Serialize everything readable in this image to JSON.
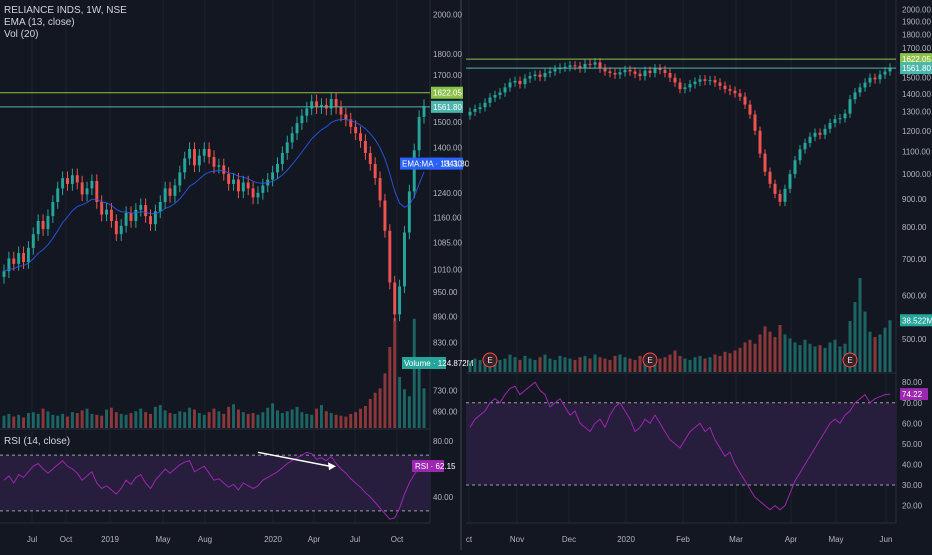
{
  "header": {
    "symbol_line": "RELIANCE INDS, 1W, NSE",
    "ema_label": "EMA (13, close)",
    "vol_label": "Vol (20)",
    "rsi_label": "RSI (14, close)"
  },
  "colors": {
    "background": "#131722",
    "bull": "#26a69a",
    "bear": "#ef5350",
    "ema": "#2962ff",
    "rsi": "#9c27b0",
    "rsi_band": "#2a1e3f",
    "level_upper": "#8bc34a",
    "level_lower": "#4db6ac",
    "axis_text": "#b2b5be",
    "grid": "#1e222d"
  },
  "chart_data": [
    {
      "type": "candlestick",
      "title": "RELIANCE INDS, 1W, NSE",
      "scale": "log",
      "ylim": [
        660,
        2080
      ],
      "price_ticks": [
        "2000.00",
        "1800.00",
        "1700.00",
        "1622.05",
        "1561.80",
        "1500.00",
        "1400.00",
        "1341.30",
        "1240.00",
        "1160.00",
        "1085.00",
        "1010.00",
        "950.00",
        "890.00",
        "830.00",
        "730.00",
        "690.00"
      ],
      "x_tick_labels": [
        "Jul",
        "Oct",
        "2019",
        "May",
        "Aug",
        "2020",
        "Apr",
        "Jul",
        "Oct"
      ],
      "horizontal_levels": [
        1622.05,
        1561.8
      ],
      "ema_label_text": "EMA:MA",
      "ema_value": 1341.3,
      "volume_label_text": "Volume",
      "volume_value": "124.872M",
      "volume_max_millions": 124.9,
      "close_series": [
        1005,
        1040,
        1025,
        1055,
        1030,
        1070,
        1110,
        1150,
        1125,
        1165,
        1210,
        1255,
        1290,
        1270,
        1300,
        1275,
        1235,
        1255,
        1280,
        1210,
        1170,
        1185,
        1150,
        1110,
        1135,
        1175,
        1150,
        1185,
        1200,
        1165,
        1140,
        1180,
        1210,
        1255,
        1230,
        1265,
        1310,
        1360,
        1395,
        1335,
        1370,
        1395,
        1365,
        1330,
        1335,
        1305,
        1270,
        1285,
        1245,
        1275,
        1255,
        1225,
        1240,
        1265,
        1285,
        1310,
        1340,
        1380,
        1420,
        1455,
        1495,
        1525,
        1555,
        1585,
        1560,
        1570,
        1555,
        1595,
        1560,
        1530,
        1510,
        1480,
        1455,
        1425,
        1380,
        1340,
        1290,
        1215,
        1120,
        975,
        895,
        965,
        1115,
        1245,
        1390,
        1520,
        1565
      ],
      "volume_series_millions": [
        14,
        16,
        13,
        15,
        12,
        17,
        18,
        16,
        22,
        19,
        15,
        14,
        16,
        13,
        18,
        17,
        20,
        22,
        16,
        15,
        14,
        21,
        23,
        18,
        16,
        15,
        17,
        19,
        22,
        18,
        16,
        24,
        26,
        20,
        17,
        16,
        19,
        18,
        23,
        21,
        17,
        15,
        18,
        22,
        19,
        16,
        24,
        27,
        21,
        18,
        16,
        17,
        15,
        18,
        23,
        28,
        20,
        17,
        19,
        21,
        24,
        18,
        16,
        15,
        22,
        26,
        19,
        17,
        15,
        14,
        13,
        16,
        18,
        22,
        25,
        33,
        40,
        45,
        62,
        92,
        124.9,
        58,
        44,
        36,
        124,
        70,
        45
      ]
    },
    {
      "type": "candlestick",
      "scale": "log",
      "ylim": [
        435,
        2080
      ],
      "price_ticks": [
        "2000.00",
        "1900.00",
        "1800.00",
        "1700.00",
        "1622.05",
        "1561.80",
        "1500.00",
        "1400.00",
        "1300.00",
        "1200.00",
        "1100.00",
        "1000.00",
        "900.00",
        "800.00",
        "700.00",
        "38.522M",
        "600.00",
        "500.00"
      ],
      "x_tick_labels": [
        "ct",
        "Nov",
        "Dec",
        "2020",
        "Feb",
        "Mar",
        "Apr",
        "May",
        "Jun"
      ],
      "horizontal_levels": [
        1622.05,
        1561.8
      ],
      "volume_value": "38.522M",
      "earnings_marker": "E",
      "close_series": [
        1300,
        1315,
        1325,
        1350,
        1380,
        1395,
        1410,
        1440,
        1470,
        1480,
        1460,
        1495,
        1510,
        1520,
        1505,
        1530,
        1540,
        1555,
        1565,
        1570,
        1580,
        1575,
        1560,
        1590,
        1585,
        1600,
        1560,
        1540,
        1530,
        1520,
        1535,
        1550,
        1540,
        1525,
        1510,
        1545,
        1530,
        1560,
        1550,
        1530,
        1500,
        1470,
        1430,
        1440,
        1460,
        1475,
        1490,
        1480,
        1485,
        1470,
        1450,
        1430,
        1420,
        1405,
        1385,
        1340,
        1285,
        1200,
        1090,
        1010,
        960,
        920,
        890,
        940,
        1000,
        1060,
        1110,
        1140,
        1170,
        1190,
        1180,
        1210,
        1240,
        1260,
        1265,
        1290,
        1370,
        1410,
        1440,
        1470,
        1500,
        1490,
        1520,
        1540,
        1565
      ],
      "volume_series_millions": [
        8,
        10,
        9,
        8,
        11,
        12,
        9,
        10,
        13,
        11,
        9,
        12,
        10,
        9,
        11,
        13,
        10,
        9,
        12,
        11,
        10,
        9,
        11,
        12,
        10,
        13,
        11,
        10,
        9,
        12,
        13,
        11,
        10,
        9,
        12,
        11,
        14,
        12,
        10,
        11,
        13,
        16,
        12,
        10,
        9,
        11,
        12,
        10,
        11,
        13,
        12,
        15,
        14,
        16,
        18,
        22,
        24,
        21,
        28,
        34,
        30,
        26,
        35,
        28,
        25,
        22,
        20,
        24,
        21,
        19,
        20,
        18,
        22,
        24,
        19,
        21,
        38,
        52,
        70,
        45,
        30,
        26,
        28,
        33,
        38.5
      ],
      "earnings_markers_at_index": [
        4,
        36,
        76
      ]
    }
  ],
  "rsi_data": [
    {
      "type": "line",
      "title": "RSI (14, close)",
      "ylim": [
        22,
        88
      ],
      "ticks": [
        "80.00",
        "40.00"
      ],
      "upper": 70,
      "lower": 30,
      "value_label": "RSI",
      "value": 62.15,
      "series": [
        52,
        55,
        50,
        56,
        54,
        58,
        62,
        64,
        60,
        57,
        60,
        63,
        66,
        62,
        60,
        57,
        52,
        55,
        58,
        50,
        46,
        48,
        45,
        42,
        46,
        52,
        49,
        54,
        56,
        50,
        46,
        52,
        56,
        60,
        57,
        60,
        63,
        65,
        66,
        58,
        60,
        62,
        57,
        52,
        53,
        50,
        47,
        49,
        45,
        50,
        48,
        46,
        48,
        52,
        54,
        56,
        58,
        61,
        64,
        66,
        68,
        70,
        72,
        71,
        67,
        68,
        66,
        69,
        64,
        60,
        57,
        53,
        50,
        47,
        43,
        40,
        36,
        32,
        28,
        24,
        25,
        32,
        42,
        50,
        56,
        61,
        62.15
      ]
    },
    {
      "type": "line",
      "ylim": [
        12,
        84
      ],
      "ticks": [
        "80.00",
        "74.22",
        "70.00",
        "60.00",
        "50.00",
        "40.00",
        "30.00",
        "20.00"
      ],
      "upper": 70,
      "lower": 30,
      "value": 74.22,
      "series": [
        58,
        62,
        64,
        66,
        70,
        72,
        70,
        74,
        77,
        78,
        74,
        76,
        78,
        80,
        76,
        74,
        68,
        70,
        72,
        68,
        64,
        66,
        60,
        58,
        56,
        60,
        62,
        58,
        64,
        68,
        70,
        66,
        62,
        56,
        58,
        62,
        60,
        64,
        60,
        56,
        52,
        50,
        48,
        52,
        56,
        58,
        60,
        56,
        58,
        52,
        48,
        44,
        46,
        40,
        36,
        32,
        28,
        24,
        22,
        20,
        18,
        20,
        18,
        20,
        26,
        32,
        36,
        40,
        44,
        48,
        52,
        56,
        60,
        62,
        60,
        64,
        66,
        70,
        72,
        74,
        70,
        72,
        73,
        74,
        74.22
      ]
    }
  ]
}
